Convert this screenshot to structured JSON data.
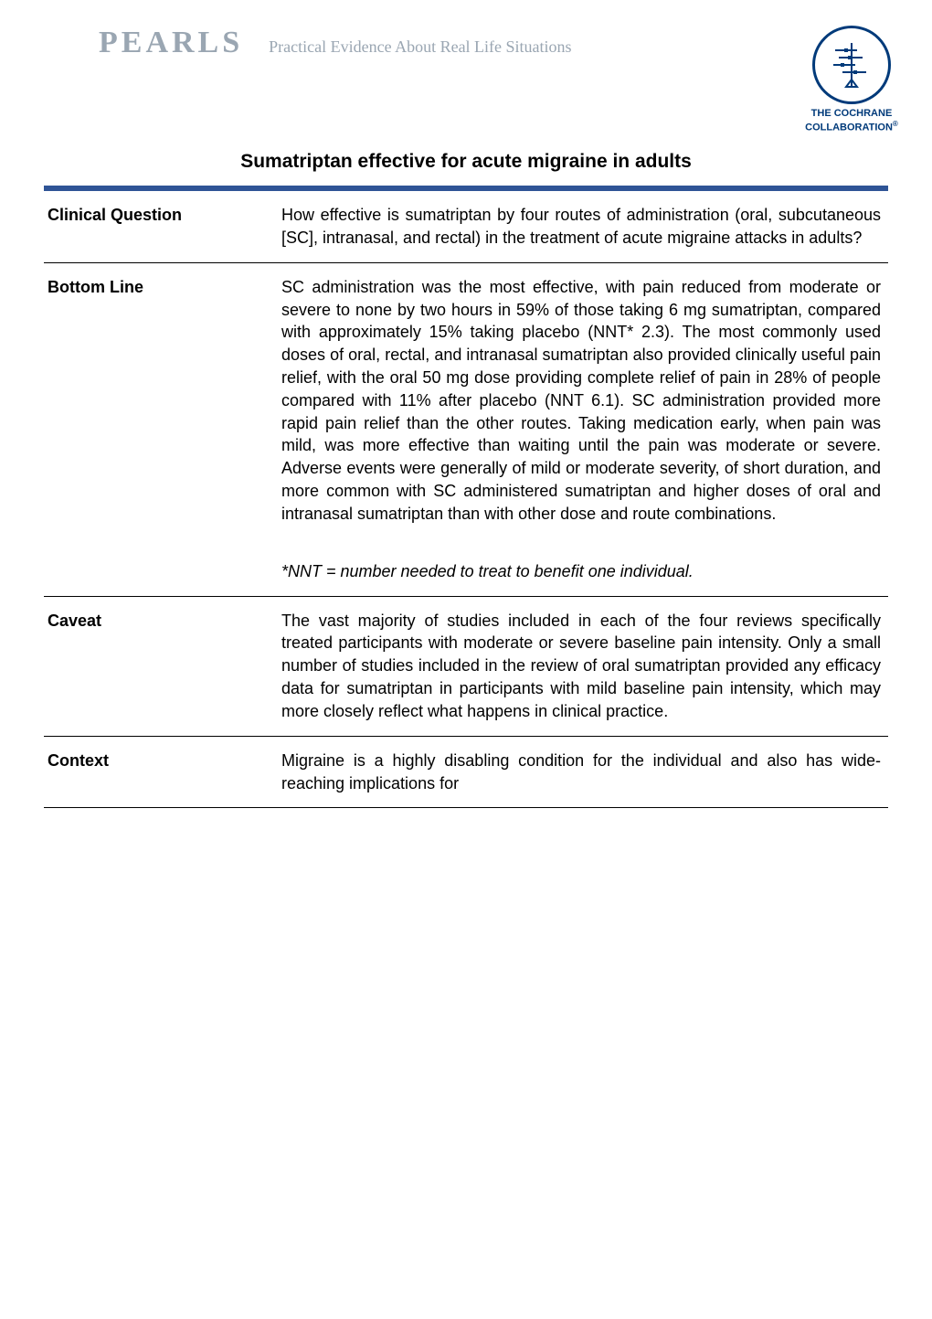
{
  "header": {
    "pearls": "PEARLS",
    "subtitle": "Practical Evidence About Real Life Situations",
    "logo_line1": "THE COCHRANE",
    "logo_line2": "COLLABORATION",
    "logo_reg": "®"
  },
  "title": "Sumatriptan effective for acute migraine in adults",
  "palette": {
    "header_gray": "#9aa6b2",
    "bar_blue": "#2f5496",
    "logo_blue": "#003a7a"
  },
  "rows": [
    {
      "label": "Clinical Question",
      "body": "How effective is sumatriptan by four routes of administration (oral, subcutaneous [SC], intranasal, and rectal) in the treatment of acute migraine attacks in adults?"
    },
    {
      "label": "Bottom Line",
      "body": "SC administration was the most effective, with pain reduced from moderate or severe to none by two hours in 59% of those taking 6 mg sumatriptan, compared with approximately 15% taking placebo (NNT* 2.3). The most commonly used doses of oral, rectal, and intranasal sumatriptan also provided clinically useful pain relief, with the oral 50 mg dose providing complete relief of pain in 28% of people compared with 11% after placebo (NNT 6.1). SC administration provided more rapid pain relief than the other routes. Taking medication early, when pain was mild, was more effective than waiting until the pain was moderate or severe. Adverse events were generally of mild or moderate severity, of short duration, and more common with SC administered sumatriptan and higher doses of oral and intranasal sumatriptan than with other dose and route combinations.",
      "note": "*NNT = number needed to treat to benefit one individual."
    },
    {
      "label": "Caveat",
      "body": "The vast majority of studies included in each of the four reviews specifically treated participants with moderate or severe baseline pain intensity. Only a small number of studies included in the review of oral sumatriptan provided any efficacy data for sumatriptan in participants with mild baseline pain intensity, which may more closely reflect what happens in clinical practice."
    },
    {
      "label": "Context",
      "body": "Migraine is a highly disabling condition for the individual and also has wide-reaching implications for"
    }
  ]
}
